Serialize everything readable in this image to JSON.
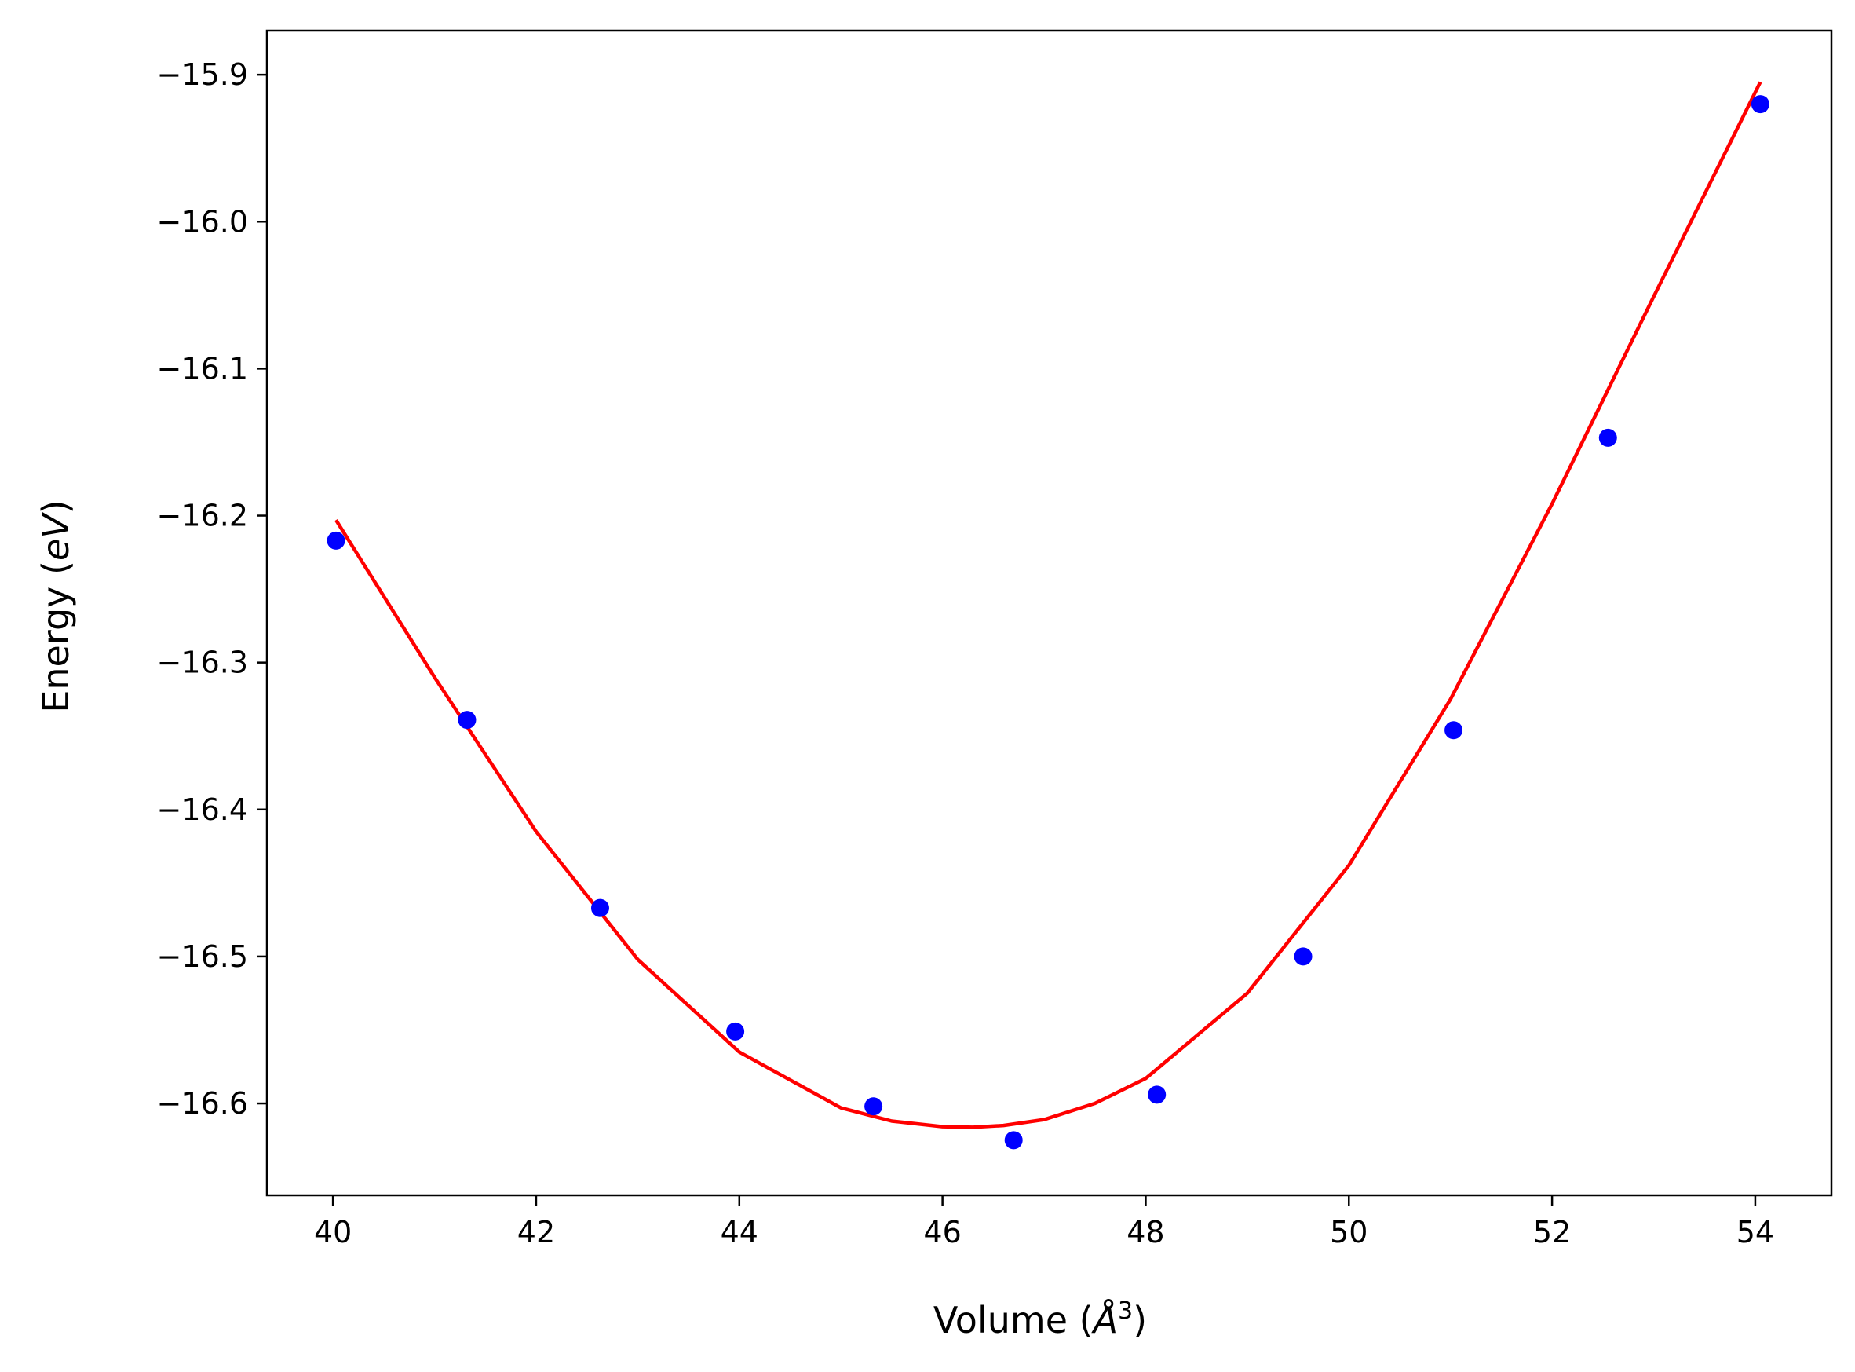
{
  "chart_data": {
    "type": "scatter",
    "xlabel_main": "Volume (",
    "xlabel_unit": "Å",
    "xlabel_exp": "3",
    "xlabel_close": ")",
    "ylabel_main": "Energy (",
    "ylabel_unit": "eV",
    "ylabel_close": ")",
    "xlim": [
      39.35,
      54.75
    ],
    "ylim": [
      -16.6625,
      -15.87
    ],
    "xticks": [
      40,
      42,
      44,
      46,
      48,
      50,
      52,
      54
    ],
    "xtick_labels": [
      "40",
      "42",
      "44",
      "46",
      "48",
      "50",
      "52",
      "54"
    ],
    "yticks": [
      -15.9,
      -16.0,
      -16.1,
      -16.2,
      -16.3,
      -16.4,
      -16.5,
      -16.6
    ],
    "ytick_labels": [
      "−15.9",
      "−16.0",
      "−16.1",
      "−16.2",
      "−16.3",
      "−16.4",
      "−16.5",
      "−16.6"
    ],
    "grid": false,
    "series": [
      {
        "kind": "points",
        "color": "#0000ff",
        "x": [
          40.03,
          41.32,
          42.63,
          43.96,
          45.32,
          46.7,
          48.11,
          49.55,
          51.03,
          52.55,
          54.05
        ],
        "y": [
          -16.217,
          -16.339,
          -16.467,
          -16.551,
          -16.602,
          -16.625,
          -16.594,
          -16.5,
          -16.346,
          -16.147,
          -15.92
        ]
      },
      {
        "kind": "fit",
        "color": "#ff0000",
        "x": [
          40.03,
          41.0,
          42.0,
          43.0,
          44.0,
          45.0,
          45.5,
          46.0,
          46.3,
          46.6,
          47.0,
          47.5,
          48.0,
          49.0,
          50.0,
          51.0,
          52.0,
          53.0,
          54.05
        ],
        "y": [
          -16.203,
          -16.31,
          -16.415,
          -16.502,
          -16.565,
          -16.603,
          -16.612,
          -16.6158,
          -16.6162,
          -16.615,
          -16.611,
          -16.6,
          -16.583,
          -16.525,
          -16.438,
          -16.325,
          -16.192,
          -16.051,
          -15.905
        ]
      }
    ]
  }
}
